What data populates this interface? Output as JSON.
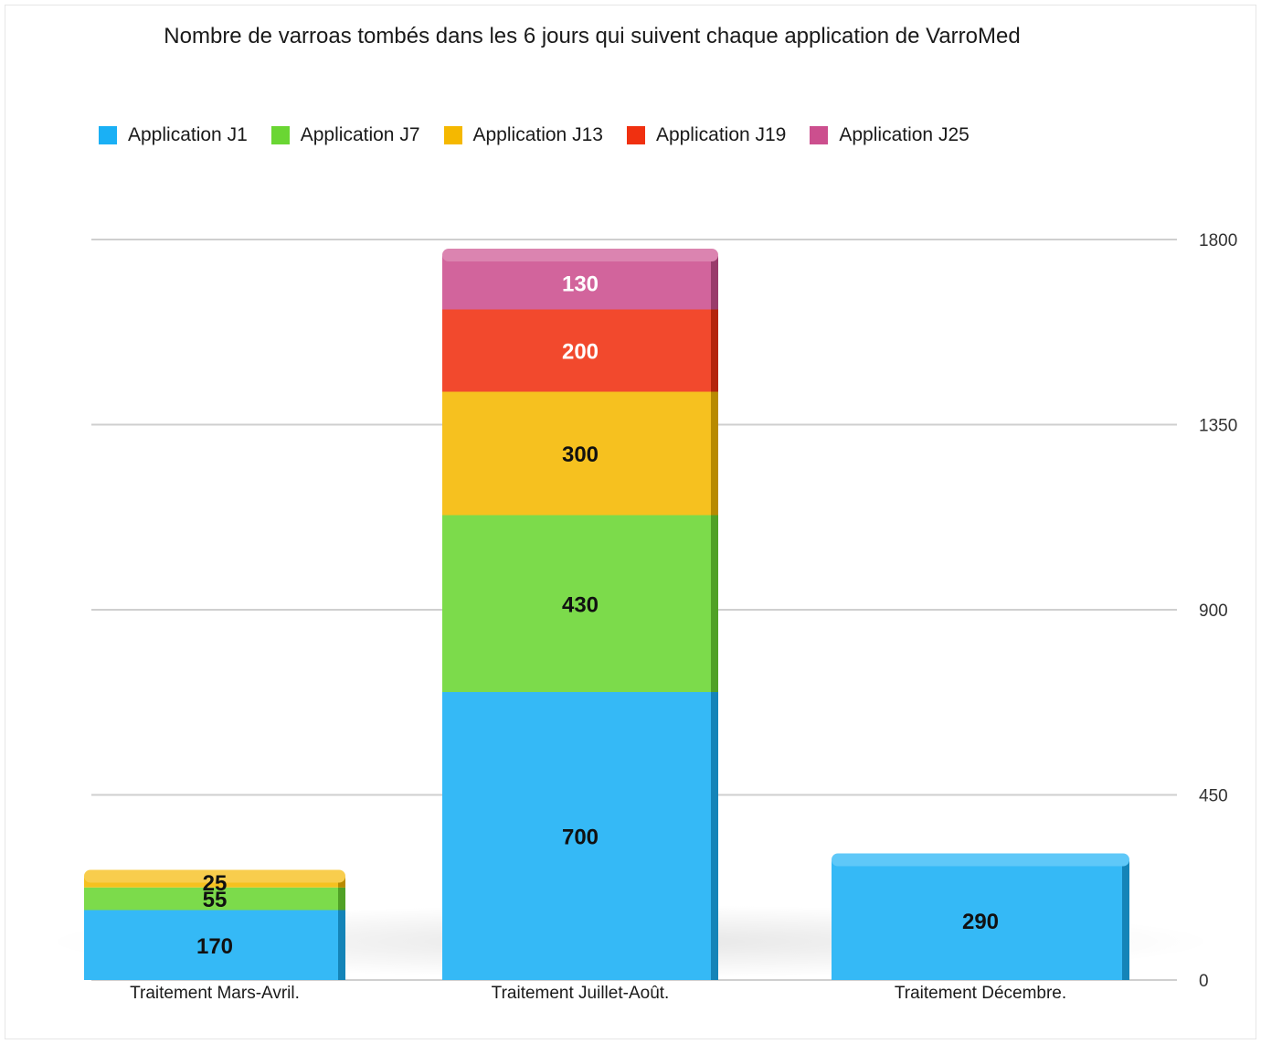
{
  "chart_data": {
    "type": "bar",
    "stacked": true,
    "title": "Nombre de varroas tombés dans les 6 jours qui suivent chaque application de VarroMed",
    "xlabel": "",
    "ylabel": "",
    "categories": [
      "Traitement Mars-Avril.",
      "Traitement Juillet-Août.",
      "Traitement Décembre."
    ],
    "series": [
      {
        "name": "Application J1",
        "color": "#1ab0f5",
        "values": [
          170,
          700,
          290
        ]
      },
      {
        "name": "Application J7",
        "color": "#6ad633",
        "values": [
          55,
          430,
          null
        ]
      },
      {
        "name": "Application J13",
        "color": "#f5b800",
        "values": [
          25,
          300,
          null
        ]
      },
      {
        "name": "Application J19",
        "color": "#f03010",
        "values": [
          null,
          200,
          null
        ]
      },
      {
        "name": "Application J25",
        "color": "#cc4f8e",
        "values": [
          null,
          130,
          null
        ]
      }
    ],
    "ylim": [
      0,
      1800
    ],
    "yticks": [
      0,
      450,
      900,
      1350,
      1800
    ],
    "grid": true,
    "legend_position": "top-left"
  }
}
